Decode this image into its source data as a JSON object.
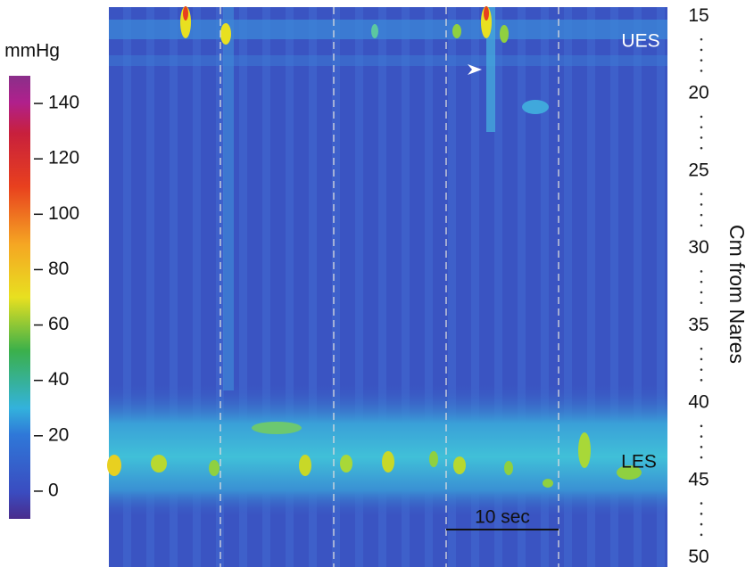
{
  "chart_data": {
    "type": "heatmap",
    "colorbar_title": "mmHg",
    "clim": [
      -10,
      150
    ],
    "cticks": [
      0,
      20,
      40,
      60,
      80,
      100,
      120,
      140
    ],
    "ylabel": "Cm from Nares",
    "ylim": [
      14.4,
      50.6
    ],
    "yticks": [
      15,
      20,
      25,
      30,
      35,
      40,
      45,
      50
    ],
    "annotations": [
      "UES",
      "LES"
    ],
    "scale_bar": "10 sec"
  }
}
